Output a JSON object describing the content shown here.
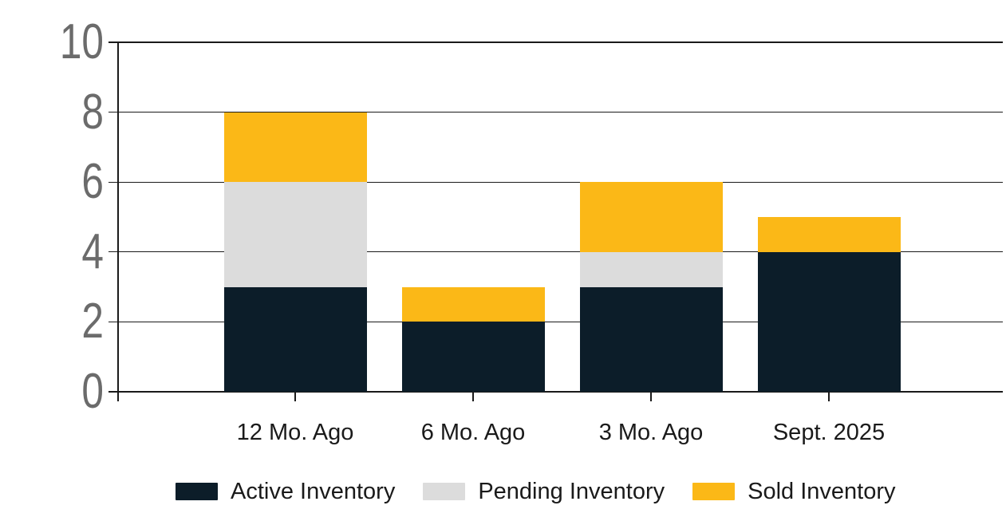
{
  "chart_data": {
    "type": "bar",
    "stacked": true,
    "title": "",
    "xlabel": "",
    "ylabel": "",
    "grid": true,
    "legend_position": "bottom",
    "categories": [
      "12 Mo. Ago",
      "6 Mo. Ago",
      "3 Mo. Ago",
      "Sept. 2025"
    ],
    "series": [
      {
        "name": "Active Inventory",
        "color": "#0C1D29",
        "values": [
          3,
          2,
          3,
          4
        ]
      },
      {
        "name": "Pending Inventory",
        "color": "#DCDCDC",
        "values": [
          3,
          0,
          1,
          0
        ]
      },
      {
        "name": "Sold Inventory",
        "color": "#FBB817",
        "values": [
          2,
          1,
          2,
          1
        ]
      }
    ],
    "stack_totals": [
      8,
      3,
      6,
      5
    ],
    "y_axis": {
      "min": 0,
      "max": 10,
      "ticks": [
        0,
        2,
        4,
        6,
        8,
        10
      ]
    }
  },
  "style": {
    "background": "#FFFFFF",
    "grid_color": "#1A1A1A",
    "axis_color": "#1A1A1A",
    "y_tick_label_color": "#6B6B6B",
    "x_label_color": "#1A1A1A",
    "legend_text_color": "#1A1A1A"
  }
}
